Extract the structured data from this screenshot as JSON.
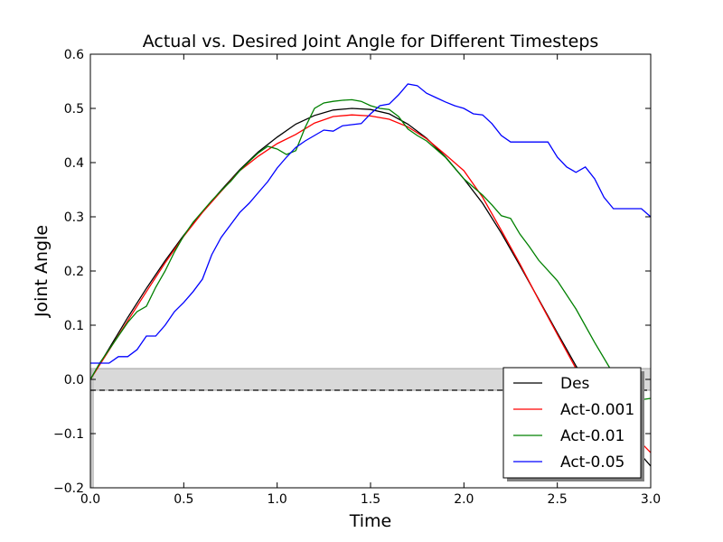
{
  "chart_data": {
    "type": "line",
    "title": "Actual vs. Desired Joint Angle for Different Timesteps",
    "xlabel": "Time",
    "ylabel": "Joint Angle",
    "xlim": [
      0.0,
      3.0
    ],
    "ylim": [
      -0.2,
      0.6
    ],
    "xticks": [
      0.0,
      0.5,
      1.0,
      1.5,
      2.0,
      2.5,
      3.0
    ],
    "xtick_labels": [
      "0.0",
      "0.5",
      "1.0",
      "1.5",
      "2.0",
      "2.5",
      "3.0"
    ],
    "yticks": [
      -0.2,
      -0.1,
      0.0,
      0.1,
      0.2,
      0.3,
      0.4,
      0.5,
      0.6
    ],
    "ytick_labels": [
      "−0.2",
      "−0.1",
      "0.0",
      "0.1",
      "0.2",
      "0.3",
      "0.4",
      "0.5",
      "0.6"
    ],
    "grid": false,
    "legend_position": "lower-right",
    "band": {
      "y": [
        -0.02,
        0.02
      ],
      "color": "#d9d9d9"
    },
    "reference_line": {
      "y": -0.02,
      "style": "dashed",
      "color": "#000000"
    },
    "series": [
      {
        "name": "Des",
        "color": "#000000",
        "x": [
          0.0,
          0.1,
          0.2,
          0.3,
          0.4,
          0.5,
          0.6,
          0.7,
          0.8,
          0.9,
          1.0,
          1.1,
          1.2,
          1.3,
          1.4,
          1.5,
          1.6,
          1.7,
          1.8,
          1.9,
          2.0,
          2.1,
          2.2,
          2.3,
          2.4,
          2.5,
          2.6,
          2.7,
          2.8,
          2.9,
          3.0
        ],
        "y": [
          0.0,
          0.057,
          0.114,
          0.168,
          0.219,
          0.266,
          0.309,
          0.349,
          0.387,
          0.42,
          0.447,
          0.471,
          0.487,
          0.497,
          0.5,
          0.498,
          0.49,
          0.471,
          0.445,
          0.411,
          0.37,
          0.325,
          0.27,
          0.21,
          0.148,
          0.086,
          0.025,
          -0.03,
          -0.078,
          -0.12,
          -0.16
        ]
      },
      {
        "name": "Act-0.001",
        "color": "#ff0000",
        "x": [
          0.0,
          0.1,
          0.2,
          0.3,
          0.4,
          0.5,
          0.6,
          0.7,
          0.8,
          0.9,
          1.0,
          1.1,
          1.2,
          1.3,
          1.4,
          1.5,
          1.6,
          1.7,
          1.8,
          1.9,
          2.0,
          2.1,
          2.2,
          2.3,
          2.4,
          2.5,
          2.6,
          2.7,
          2.8,
          2.9,
          3.0
        ],
        "y": [
          0.0,
          0.054,
          0.108,
          0.162,
          0.215,
          0.264,
          0.308,
          0.347,
          0.385,
          0.412,
          0.435,
          0.452,
          0.473,
          0.485,
          0.488,
          0.486,
          0.48,
          0.466,
          0.444,
          0.415,
          0.385,
          0.336,
          0.275,
          0.213,
          0.147,
          0.083,
          0.02,
          -0.035,
          -0.07,
          -0.1,
          -0.135
        ]
      },
      {
        "name": "Act-0.01",
        "color": "#008000",
        "x": [
          0.0,
          0.05,
          0.1,
          0.15,
          0.2,
          0.25,
          0.3,
          0.35,
          0.4,
          0.45,
          0.5,
          0.55,
          0.6,
          0.65,
          0.7,
          0.75,
          0.8,
          0.85,
          0.9,
          0.95,
          1.0,
          1.05,
          1.1,
          1.15,
          1.2,
          1.25,
          1.3,
          1.35,
          1.4,
          1.45,
          1.5,
          1.55,
          1.6,
          1.65,
          1.7,
          1.75,
          1.8,
          1.9,
          2.0,
          2.1,
          2.15,
          2.2,
          2.25,
          2.3,
          2.35,
          2.4,
          2.5,
          2.6,
          2.7,
          2.8,
          2.9,
          3.0
        ],
        "y": [
          0.0,
          0.03,
          0.055,
          0.08,
          0.105,
          0.125,
          0.135,
          0.17,
          0.2,
          0.235,
          0.265,
          0.29,
          0.31,
          0.33,
          0.348,
          0.365,
          0.385,
          0.402,
          0.418,
          0.43,
          0.425,
          0.415,
          0.422,
          0.465,
          0.5,
          0.51,
          0.513,
          0.515,
          0.516,
          0.513,
          0.505,
          0.5,
          0.498,
          0.485,
          0.462,
          0.45,
          0.44,
          0.41,
          0.37,
          0.34,
          0.322,
          0.302,
          0.297,
          0.268,
          0.245,
          0.22,
          0.182,
          0.13,
          0.068,
          0.01,
          -0.04,
          -0.035
        ]
      },
      {
        "name": "Act-0.05",
        "color": "#0000ff",
        "x": [
          0.0,
          0.05,
          0.1,
          0.15,
          0.2,
          0.25,
          0.3,
          0.35,
          0.4,
          0.45,
          0.5,
          0.55,
          0.6,
          0.65,
          0.7,
          0.75,
          0.8,
          0.85,
          0.9,
          0.95,
          1.0,
          1.05,
          1.1,
          1.15,
          1.2,
          1.25,
          1.3,
          1.35,
          1.4,
          1.45,
          1.5,
          1.55,
          1.6,
          1.65,
          1.7,
          1.75,
          1.8,
          1.85,
          1.9,
          1.95,
          2.0,
          2.05,
          2.1,
          2.15,
          2.2,
          2.25,
          2.3,
          2.35,
          2.4,
          2.45,
          2.5,
          2.55,
          2.6,
          2.65,
          2.7,
          2.75,
          2.8,
          2.85,
          2.9,
          2.95,
          3.0
        ],
        "y": [
          0.03,
          0.03,
          0.03,
          0.042,
          0.042,
          0.055,
          0.08,
          0.08,
          0.1,
          0.125,
          0.142,
          0.162,
          0.185,
          0.23,
          0.262,
          0.285,
          0.308,
          0.325,
          0.345,
          0.365,
          0.39,
          0.41,
          0.428,
          0.44,
          0.45,
          0.46,
          0.458,
          0.468,
          0.47,
          0.472,
          0.49,
          0.505,
          0.508,
          0.525,
          0.545,
          0.542,
          0.528,
          0.52,
          0.512,
          0.505,
          0.5,
          0.49,
          0.488,
          0.472,
          0.45,
          0.438,
          0.438,
          0.438,
          0.438,
          0.438,
          0.41,
          0.392,
          0.382,
          0.392,
          0.37,
          0.336,
          0.315,
          0.315,
          0.315,
          0.315,
          0.3
        ]
      }
    ]
  }
}
